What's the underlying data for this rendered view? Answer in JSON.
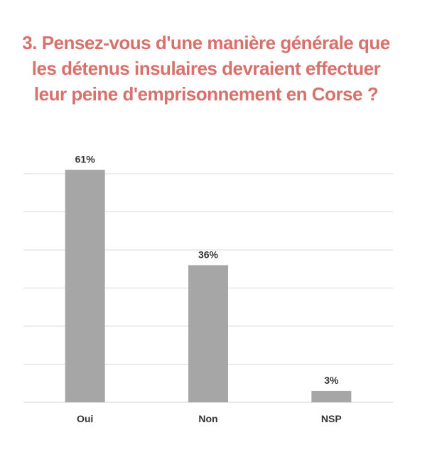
{
  "title_lines": [
    "3. Pensez-vous d'une manière générale que",
    "les détenus insulaires devraient effectuer",
    "leur peine d'emprisonnement en Corse ?"
  ],
  "colors": {
    "title": "#d9706b",
    "bar": "#a6a6a6",
    "grid": "#d9d9d9"
  },
  "chart_data": {
    "type": "bar",
    "categories": [
      "Oui",
      "Non",
      "NSP"
    ],
    "values": [
      61,
      36,
      3
    ],
    "data_labels": [
      "61%",
      "36%",
      "3%"
    ],
    "title": "3. Pensez-vous d'une manière générale que les détenus insulaires devraient effectuer leur peine d'emprisonnement en Corse ?",
    "xlabel": "",
    "ylabel": "",
    "ylim": [
      0,
      60
    ],
    "grid": true,
    "legend": "none"
  }
}
